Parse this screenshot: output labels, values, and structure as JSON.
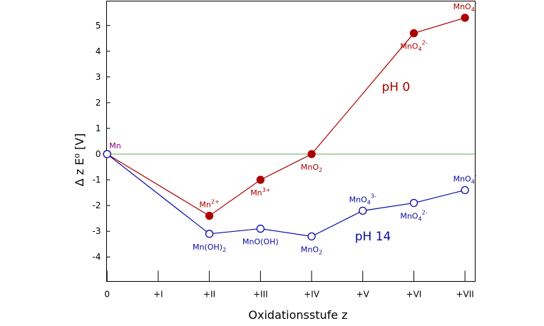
{
  "chart_data": {
    "type": "line",
    "title": "",
    "xlabel": "Oxidationsstufe z",
    "ylabel": "Δ z E⁰ [V]",
    "categories": [
      "0",
      "+I",
      "+II",
      "+III",
      "+IV",
      "+V",
      "+VI",
      "+VII"
    ],
    "xlim": [
      -0.01,
      7.2
    ],
    "ylim": [
      -4.95,
      5.95
    ],
    "yticks": [
      -4,
      -3,
      -2,
      -1,
      0,
      1,
      2,
      3,
      4,
      5
    ],
    "reference_line": {
      "y": 0,
      "color": "#6aaa58"
    },
    "series": [
      {
        "name": "pH 0",
        "color": "#aa0000",
        "marker": "filled",
        "points": [
          {
            "x": 0,
            "y": 0,
            "label": "Mn",
            "label_sup": "",
            "label_sub": "",
            "label_pos": "nw-up",
            "label_color": "#800080"
          },
          {
            "x": 2,
            "y": -2.4,
            "label": "Mn",
            "label_sup": "2+",
            "label_sub": "",
            "label_pos": "above"
          },
          {
            "x": 3,
            "y": -1.0,
            "label": "Mn",
            "label_sup": "3+",
            "label_sub": "",
            "label_pos": "below"
          },
          {
            "x": 4,
            "y": 0.0,
            "label": "MnO",
            "label_sup": "",
            "label_sub": "2",
            "label_pos": "below"
          },
          {
            "x": 6,
            "y": 4.7,
            "label": "MnO",
            "label_sup": "2-",
            "label_sub": "4",
            "label_pos": "below"
          },
          {
            "x": 7,
            "y": 5.3,
            "label": "MnO",
            "label_sup": "-",
            "label_sub": "4",
            "label_pos": "above"
          }
        ]
      },
      {
        "name": "pH 14",
        "color": "#0a0aa0",
        "marker": "open",
        "points": [
          {
            "x": 0,
            "y": 0,
            "label": "",
            "label_sup": "",
            "label_sub": "",
            "label_pos": "none"
          },
          {
            "x": 2,
            "y": -3.1,
            "label": "Mn(OH)",
            "label_sup": "",
            "label_sub": "2",
            "label_pos": "below"
          },
          {
            "x": 3,
            "y": -2.9,
            "label": "MnO(OH)",
            "label_sup": "",
            "label_sub": "",
            "label_pos": "below"
          },
          {
            "x": 4,
            "y": -3.2,
            "label": "MnO",
            "label_sup": "",
            "label_sub": "2",
            "label_pos": "below"
          },
          {
            "x": 5,
            "y": -2.2,
            "label": "MnO",
            "label_sup": "3-",
            "label_sub": "4",
            "label_pos": "above"
          },
          {
            "x": 6,
            "y": -1.9,
            "label": "MnO",
            "label_sup": "2-",
            "label_sub": "4",
            "label_pos": "below"
          },
          {
            "x": 7,
            "y": -1.4,
            "label": "MnO",
            "label_sup": "-",
            "label_sub": "4",
            "label_pos": "above"
          }
        ]
      }
    ],
    "annotations": [
      {
        "text": "pH 0",
        "series": "pH 0",
        "x": 5.65,
        "y": 2.45
      },
      {
        "text": "pH 14",
        "series": "pH 14",
        "x": 5.2,
        "y": -3.35
      }
    ]
  }
}
